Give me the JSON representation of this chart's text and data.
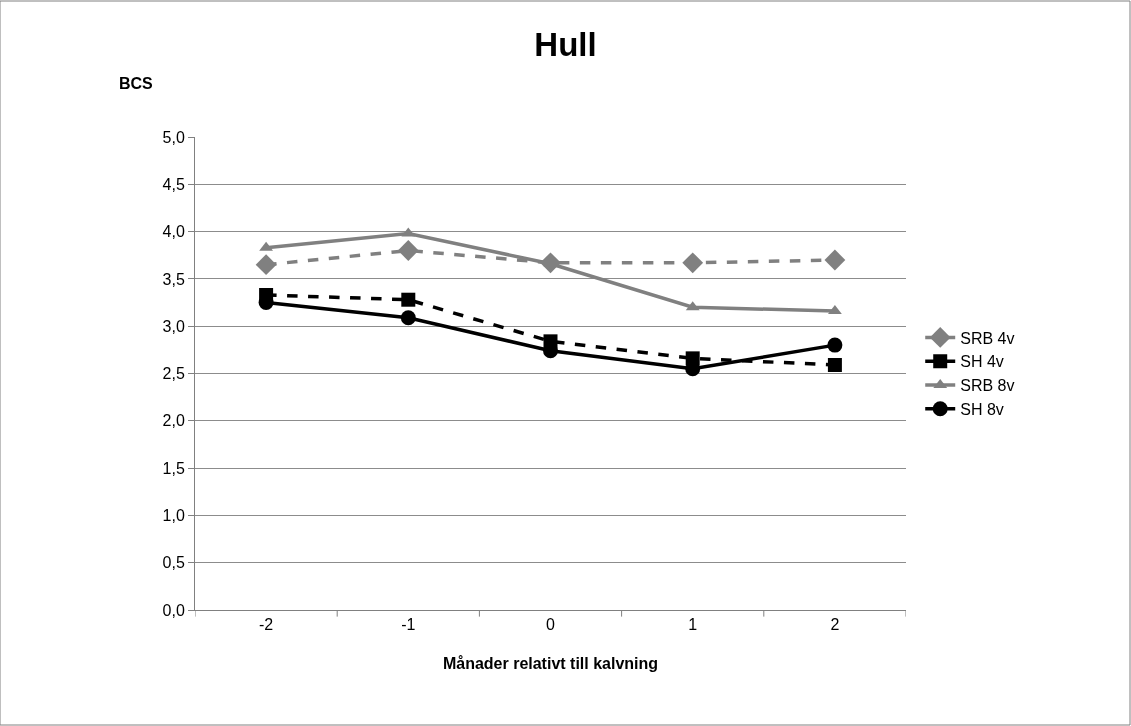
{
  "chart_data": {
    "type": "line",
    "title": "Hull",
    "xlabel": "Månader relativt till kalvning",
    "ylabel": "BCS",
    "categories": [
      "-2",
      "-1",
      "0",
      "1",
      "2"
    ],
    "series": [
      {
        "name": "SRB 4v",
        "color": "#808080",
        "marker": "diamond",
        "line_style": "dashed",
        "values": [
          3.65,
          3.8,
          3.67,
          3.67,
          3.7
        ]
      },
      {
        "name": "SH 4v",
        "color": "#000000",
        "marker": "square",
        "line_style": "dashed",
        "values": [
          3.33,
          3.28,
          2.84,
          2.66,
          2.59
        ]
      },
      {
        "name": "SRB 8v",
        "color": "#808080",
        "marker": "triangle",
        "line_style": "solid",
        "values": [
          3.83,
          3.98,
          3.66,
          3.2,
          3.16
        ]
      },
      {
        "name": "SH 8v",
        "color": "#000000",
        "marker": "circle",
        "line_style": "solid",
        "values": [
          3.25,
          3.09,
          2.74,
          2.55,
          2.8
        ]
      }
    ],
    "ylim": [
      0,
      5
    ],
    "yticks": [
      {
        "value": 0,
        "label": "0,0"
      },
      {
        "value": 0.5,
        "label": "0,5"
      },
      {
        "value": 1,
        "label": "1,0"
      },
      {
        "value": 1.5,
        "label": "1,5"
      },
      {
        "value": 2,
        "label": "2,0"
      },
      {
        "value": 2.5,
        "label": "2,5"
      },
      {
        "value": 3,
        "label": "3,0"
      },
      {
        "value": 3.5,
        "label": "3,5"
      },
      {
        "value": 4,
        "label": "4,0"
      },
      {
        "value": 4.5,
        "label": "4,5"
      },
      {
        "value": 5,
        "label": "5,0"
      }
    ],
    "grid": "y",
    "legend": "right"
  }
}
